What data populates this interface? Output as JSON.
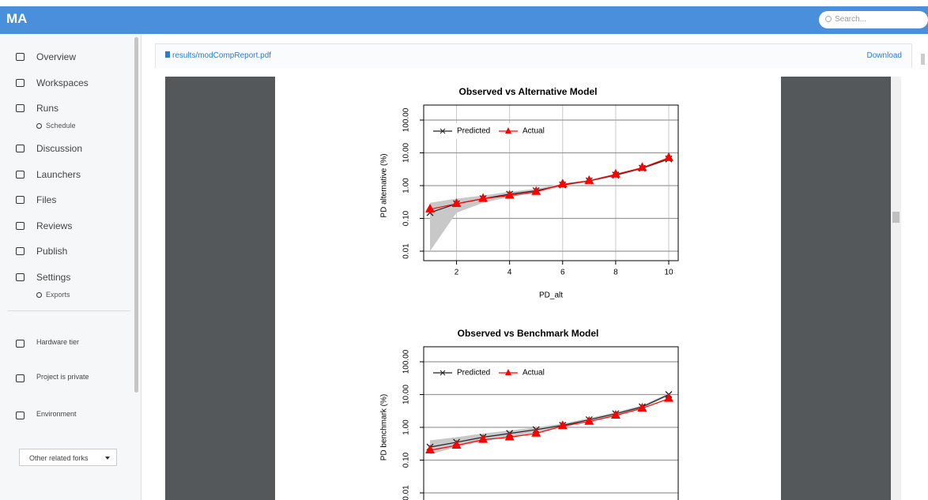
{
  "header": {
    "logo": "MA",
    "search": "Search..."
  },
  "sidebar": {
    "items": [
      {
        "label": "Overview",
        "level": 1
      },
      {
        "label": "Workspaces",
        "level": 1
      },
      {
        "label": "Runs",
        "level": 1
      },
      {
        "label": "Schedule",
        "level": 2
      },
      {
        "label": "Discussion",
        "level": 1
      },
      {
        "label": "Launchers",
        "level": 1
      },
      {
        "label": "Files",
        "level": 1
      },
      {
        "label": "Reviews",
        "level": 1
      },
      {
        "label": "Publish",
        "level": 1
      },
      {
        "label": "Settings",
        "level": 1
      },
      {
        "label": "Exports",
        "level": 2
      }
    ],
    "footer": [
      "Hardware tier",
      "Project is private",
      "Environment"
    ],
    "fork_select": "Other related forks"
  },
  "file": {
    "path": "results/modCompReport.pdf",
    "action": "Download"
  },
  "pdf": {
    "charts": [
      {
        "type": "line",
        "title": "Observed vs Alternative Model",
        "xlabel": "PD_alt",
        "ylabel": "PD alternative (%)",
        "x": [
          1,
          2,
          3,
          4,
          5,
          6,
          7,
          8,
          9,
          10
        ],
        "xlim": [
          1,
          10
        ],
        "xticks": [
          2,
          4,
          6,
          8,
          10
        ],
        "ylim": [
          0.01,
          100
        ],
        "log_y": true,
        "grid": true,
        "legend": "upper left",
        "yticks": [
          {
            "value": 0.01,
            "label": "0.01"
          },
          {
            "value": 0.1,
            "label": "0.10"
          },
          {
            "value": 1,
            "label": "1.00"
          },
          {
            "value": 10,
            "label": "10.00"
          },
          {
            "value": 100,
            "label": "100.00"
          }
        ],
        "band": {
          "color": "#c8c8c8",
          "upper": [
            0.3,
            0.4,
            0.5,
            0.65,
            0.8,
            1.15,
            1.5,
            2.3,
            3.7,
            7.5
          ],
          "lower": [
            0.01,
            0.15,
            0.3,
            0.45,
            0.6,
            0.95,
            1.3,
            1.9,
            3.1,
            6
          ]
        },
        "series": [
          {
            "name": "Predicted",
            "color": "#222222",
            "marker": "x",
            "values": [
              0.15,
              0.28,
              0.4,
              0.55,
              0.7,
              1.05,
              1.4,
              2.1,
              3.4,
              6.5
            ]
          },
          {
            "name": "Actual",
            "color": "#ff0000",
            "marker": "triangle",
            "values": [
              0.19,
              0.28,
              0.4,
              0.5,
              0.65,
              1.1,
              1.4,
              2.2,
              3.5,
              7
            ]
          }
        ]
      },
      {
        "type": "line",
        "title": "Observed vs Benchmark Model",
        "ylabel": "PD benchmark (%)",
        "x": [
          1,
          2,
          3,
          4,
          5,
          6,
          7,
          8,
          9,
          10
        ],
        "xlim": [
          1,
          10
        ],
        "ylim": [
          0.01,
          100
        ],
        "log_y": true,
        "grid": true,
        "legend": "upper left",
        "yticks": [
          {
            "value": 0.01,
            "label": "0.01"
          },
          {
            "value": 0.1,
            "label": "0.10"
          },
          {
            "value": 1,
            "label": "1.00"
          },
          {
            "value": 10,
            "label": "10.00"
          },
          {
            "value": 100,
            "label": "100.00"
          }
        ],
        "band": {
          "color": "#c8c8c8",
          "upper": [
            0.4,
            0.5,
            0.65,
            0.8,
            1,
            1.3,
            1.9,
            2.9,
            4.7,
            11
          ],
          "lower": [
            0.15,
            0.25,
            0.38,
            0.5,
            0.7,
            1,
            1.5,
            2.3,
            3.8,
            9
          ]
        },
        "series": [
          {
            "name": "Predicted",
            "color": "#222222",
            "marker": "x",
            "values": [
              0.25,
              0.35,
              0.5,
              0.65,
              0.85,
              1.15,
              1.7,
              2.6,
              4.2,
              10
            ]
          },
          {
            "name": "Actual",
            "color": "#ff0000",
            "marker": "triangle",
            "values": [
              0.2,
              0.28,
              0.42,
              0.5,
              0.65,
              1.1,
              1.5,
              2.3,
              3.8,
              7.5
            ]
          }
        ]
      }
    ]
  }
}
